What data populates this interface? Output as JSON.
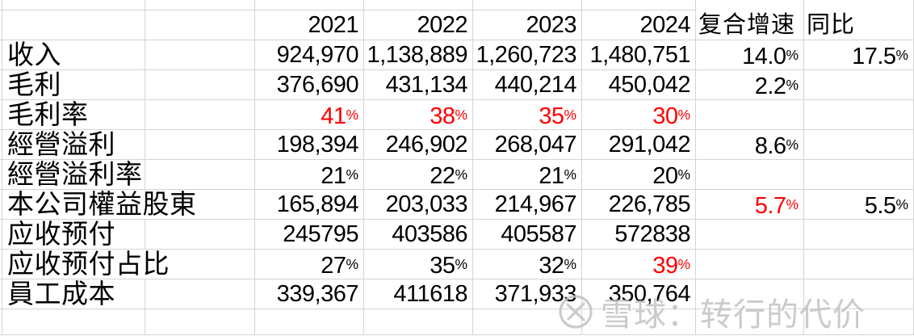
{
  "colors": {
    "accent_red": "#ff0000",
    "gridline": "#d4d4d4",
    "watermark_gray": "#c3c3c3"
  },
  "header": {
    "years": [
      "2021",
      "2022",
      "2023",
      "2024"
    ],
    "cagr_label": "复合增速",
    "yoy_label": "同比"
  },
  "rows": [
    {
      "label": "收入",
      "values": [
        "924,970",
        "1,138,889",
        "1,260,723",
        "1,480,751"
      ],
      "cagr": "14.0%",
      "yoy": "17.5%"
    },
    {
      "label": "毛利",
      "values": [
        "376,690",
        "431,134",
        "440,214",
        "450,042"
      ],
      "cagr": "2.2%",
      "yoy": ""
    },
    {
      "label": "毛利率",
      "values": [
        "41%",
        "38%",
        "35%",
        "30%"
      ],
      "value_colors": [
        "red",
        "red",
        "red",
        "red"
      ],
      "cagr": "",
      "yoy": ""
    },
    {
      "label": "經營溢利",
      "values": [
        "198,394",
        "246,902",
        "268,047",
        "291,042"
      ],
      "cagr": "8.6%",
      "yoy": ""
    },
    {
      "label": "經營溢利率",
      "values": [
        "21%",
        "22%",
        "21%",
        "20%"
      ],
      "cagr": "",
      "yoy": ""
    },
    {
      "label": "本公司權益股東",
      "values": [
        "165,894",
        "203,033",
        "214,967",
        "226,785"
      ],
      "cagr": "5.7%",
      "cagr_color": "red",
      "yoy": "5.5%"
    },
    {
      "label": "应收预付",
      "values": [
        "245795",
        "403586",
        "405587",
        "572838"
      ],
      "cagr": "",
      "yoy": ""
    },
    {
      "label": "应收预付占比",
      "values": [
        "27%",
        "35%",
        "32%",
        "39%"
      ],
      "value_colors": [
        "",
        "",
        "",
        "red"
      ],
      "cagr": "",
      "yoy": ""
    },
    {
      "label": "員工成本",
      "values": [
        "339,367",
        "411618",
        "371,933",
        "350,764"
      ],
      "cagr": "",
      "yoy": ""
    }
  ],
  "watermark": {
    "text": "雪球：转行的代价"
  }
}
